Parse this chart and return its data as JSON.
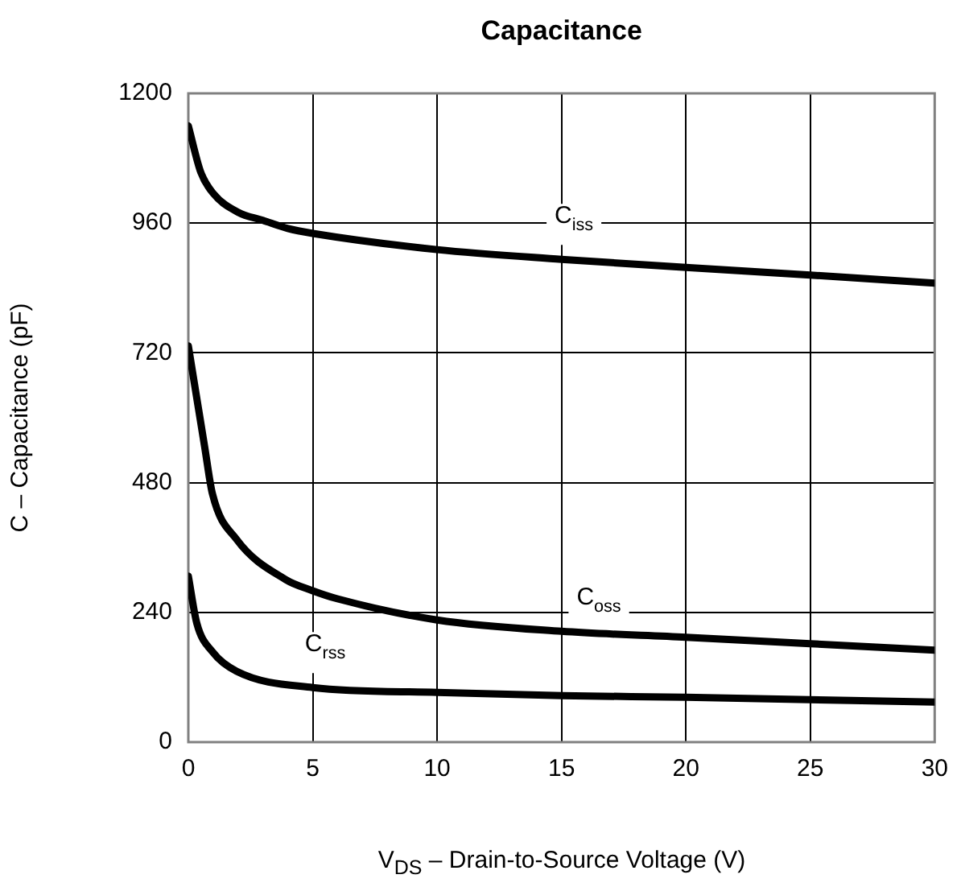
{
  "chart_data": {
    "type": "line",
    "title": "Capacitance",
    "xlabel": "V$_{DS}$ – Drain-to-Source Voltage (V)",
    "ylabel": "C – Capacitance (pF)",
    "xlim": [
      0,
      30
    ],
    "xticks": [
      0,
      5,
      10,
      15,
      20,
      25,
      30
    ],
    "ylim": [
      0,
      1200
    ],
    "yticks": [
      0,
      240,
      480,
      720,
      960,
      1200
    ],
    "grid": true,
    "marker": "none",
    "line_style": "solid",
    "series": [
      {
        "name": "C$_{iss}$",
        "color": "#000000",
        "x": [
          0,
          0.5,
          1,
          2,
          3,
          4,
          5,
          10,
          15,
          20,
          25,
          30
        ],
        "values": [
          1140,
          1054,
          1015,
          980,
          965,
          950,
          941,
          911,
          893,
          878,
          864,
          849
        ]
      },
      {
        "name": "C$_{oss}$",
        "color": "#000000",
        "x": [
          0,
          0.65,
          0.97,
          1.94,
          3.9,
          5,
          6,
          10,
          15,
          20,
          25,
          30
        ],
        "values": [
          733,
          548,
          459,
          375,
          301,
          280,
          265,
          226,
          205,
          194,
          182,
          170
        ]
      },
      {
        "name": "C$_{rss}$",
        "color": "#000000",
        "x": [
          0,
          0.34,
          0.97,
          1.94,
          5,
          10,
          15,
          20,
          30
        ],
        "values": [
          307,
          220,
          167,
          131,
          101,
          92,
          86,
          83,
          74
        ]
      }
    ]
  }
}
